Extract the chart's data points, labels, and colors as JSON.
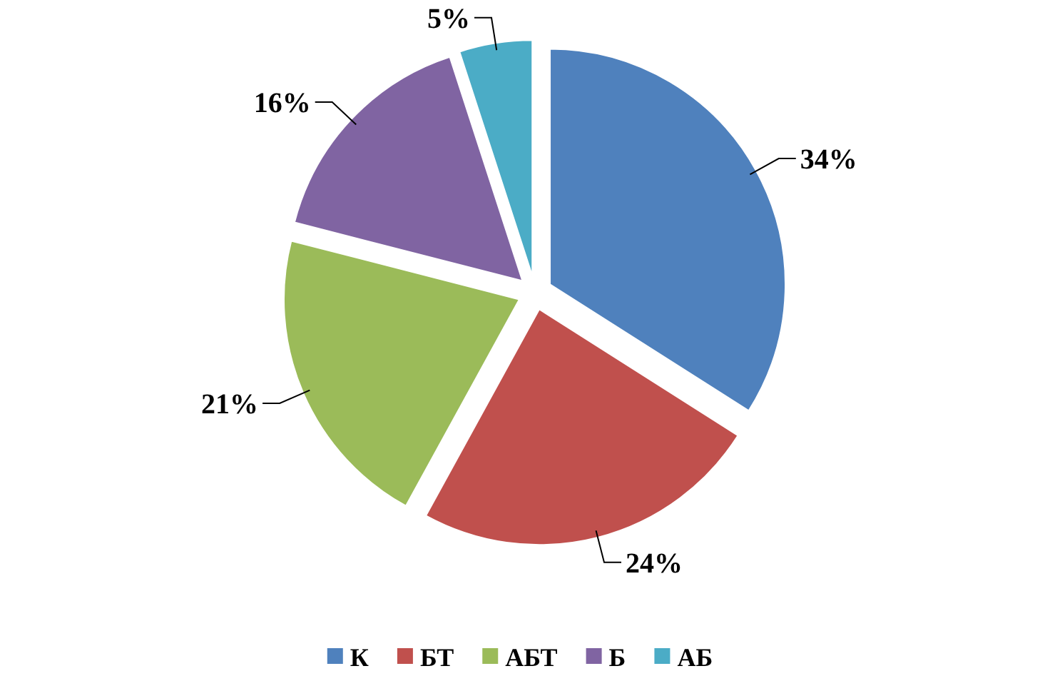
{
  "chart_data": {
    "type": "pie",
    "categories": [
      "К",
      "БТ",
      "АБТ",
      "Б",
      "АБ"
    ],
    "values": [
      34,
      24,
      21,
      16,
      5
    ],
    "colors": [
      "#4f81bd",
      "#c0504d",
      "#9bbb59",
      "#8064a2",
      "#4bacc6"
    ],
    "value_labels": [
      "34%",
      "24%",
      "21%",
      "16%",
      "5%"
    ],
    "legend": "bottom"
  }
}
